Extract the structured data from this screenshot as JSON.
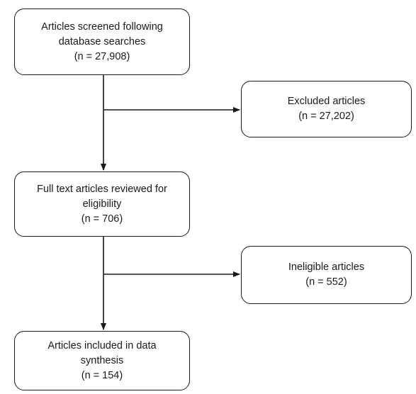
{
  "flowchart": {
    "screened": {
      "lines": [
        "Articles screened following",
        "database searches",
        "(n = 27,908)"
      ]
    },
    "excluded": {
      "lines": [
        "Excluded articles",
        "(n = 27,202)"
      ]
    },
    "fulltext": {
      "lines": [
        "Full text articles reviewed for",
        "eligibility",
        "(n = 706)"
      ]
    },
    "ineligible": {
      "lines": [
        "Ineligible articles",
        "(n = 552)"
      ]
    },
    "included": {
      "lines": [
        "Articles included in data",
        "synthesis",
        "(n = 154)"
      ]
    }
  },
  "colors": {
    "stroke": "#1a1a1a",
    "background": "#ffffff"
  }
}
